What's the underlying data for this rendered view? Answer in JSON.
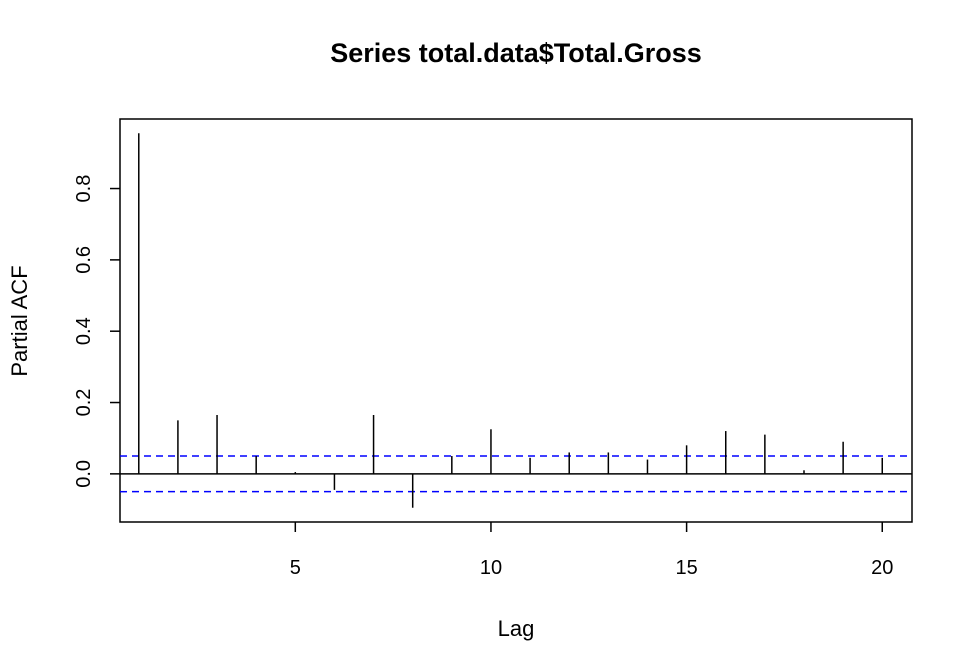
{
  "chart_data": {
    "type": "bar",
    "title": "Series  total.data$Total.Gross",
    "xlabel": "Lag",
    "ylabel": "Partial ACF",
    "x": [
      1,
      2,
      3,
      4,
      5,
      6,
      7,
      8,
      9,
      10,
      11,
      12,
      13,
      14,
      15,
      16,
      17,
      18,
      19,
      20
    ],
    "values": [
      0.955,
      0.15,
      0.165,
      0.05,
      0.005,
      -0.045,
      0.165,
      -0.095,
      0.05,
      0.125,
      0.045,
      0.06,
      0.06,
      0.04,
      0.08,
      0.12,
      0.11,
      0.01,
      0.09,
      0.045
    ],
    "xlim": [
      0.52,
      20.76
    ],
    "ylim": [
      -0.135,
      0.995
    ],
    "x_ticks": [
      5,
      10,
      15,
      20
    ],
    "y_ticks": [
      0.0,
      0.2,
      0.4,
      0.6,
      0.8
    ],
    "x_tick_labels": [
      "5",
      "10",
      "15",
      "20"
    ],
    "y_tick_labels": [
      "0.0",
      "0.2",
      "0.4",
      "0.6",
      "0.8"
    ],
    "confidence_bound": 0.05,
    "bound_color": "#0000ff",
    "bar_color": "#000000",
    "grid": false
  }
}
